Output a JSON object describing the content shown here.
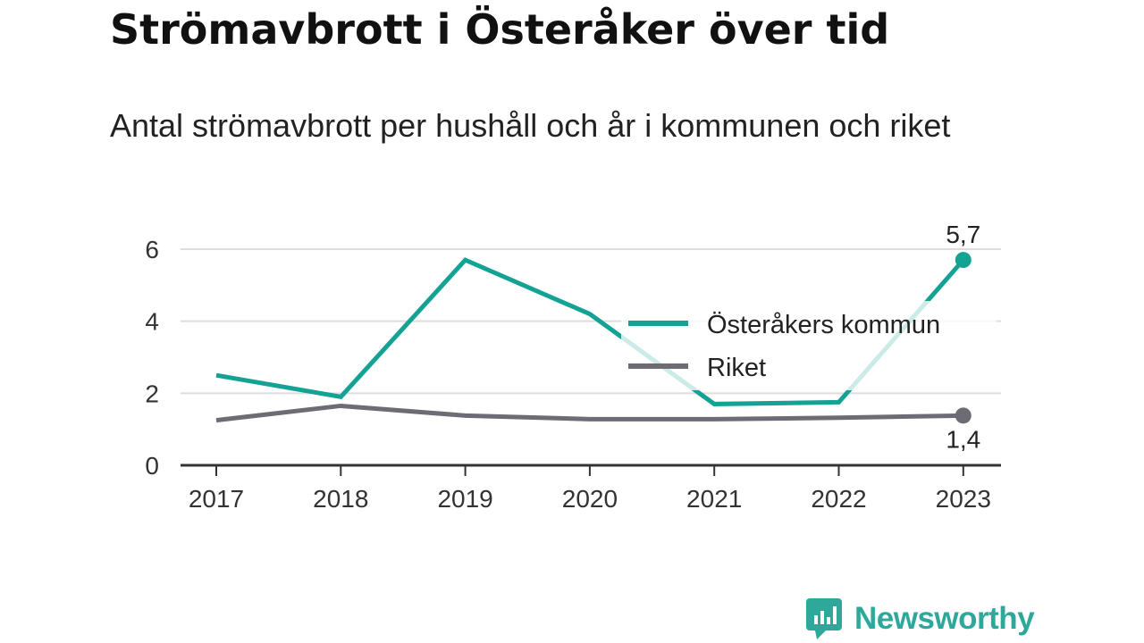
{
  "title": "Strömavbrott i Österåker över tid",
  "subtitle": "Antal strömavbrott per hushåll och år i kommunen och riket",
  "brand": {
    "name": "Newsworthy",
    "icon": "newsworthy-logo-icon",
    "color": "#2fa89c"
  },
  "chart_data": {
    "type": "line",
    "categories": [
      "2017",
      "2018",
      "2019",
      "2020",
      "2021",
      "2022",
      "2023"
    ],
    "series": [
      {
        "name": "Österåkers kommun",
        "color": "#14a294",
        "values": [
          2.5,
          1.9,
          5.7,
          4.2,
          1.7,
          1.75,
          5.7
        ]
      },
      {
        "name": "Riket",
        "color": "#6d6c74",
        "values": [
          1.25,
          1.65,
          1.38,
          1.28,
          1.28,
          1.32,
          1.38
        ]
      }
    ],
    "end_labels": [
      "5,7",
      "1,4"
    ],
    "y_ticks": [
      "0",
      "2",
      "4",
      "6"
    ],
    "ylim": [
      0,
      6
    ],
    "grid": true,
    "legend_position": "right"
  }
}
